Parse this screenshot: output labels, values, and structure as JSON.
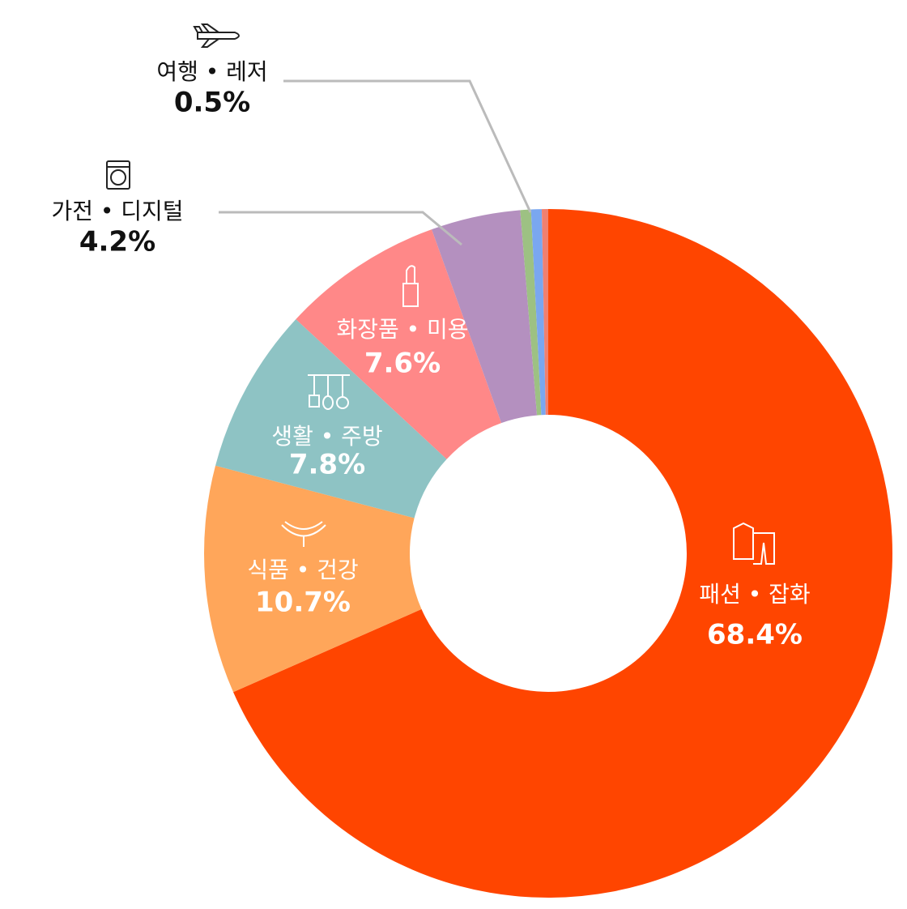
{
  "chart_data": {
    "type": "donut",
    "categories": [
      "패션 • 잡화",
      "식품 • 건강",
      "생활 • 주방",
      "화장품 • 미용",
      "가전 • 디지털",
      "여행 • 레저",
      null,
      null
    ],
    "values": [
      68.4,
      10.7,
      7.8,
      7.6,
      4.2,
      0.5,
      0.5,
      0.3
    ],
    "value_labels": [
      "68.4%",
      "10.7%",
      "7.8%",
      "7.6%",
      "4.2%",
      "0.5%",
      null,
      null
    ],
    "colors": [
      "#FF4500",
      "#FFA65A",
      "#8EC3C4",
      "#FF8888",
      "#B490BF",
      "#9DC183",
      "#7AA7F0",
      "#F08070"
    ]
  }
}
